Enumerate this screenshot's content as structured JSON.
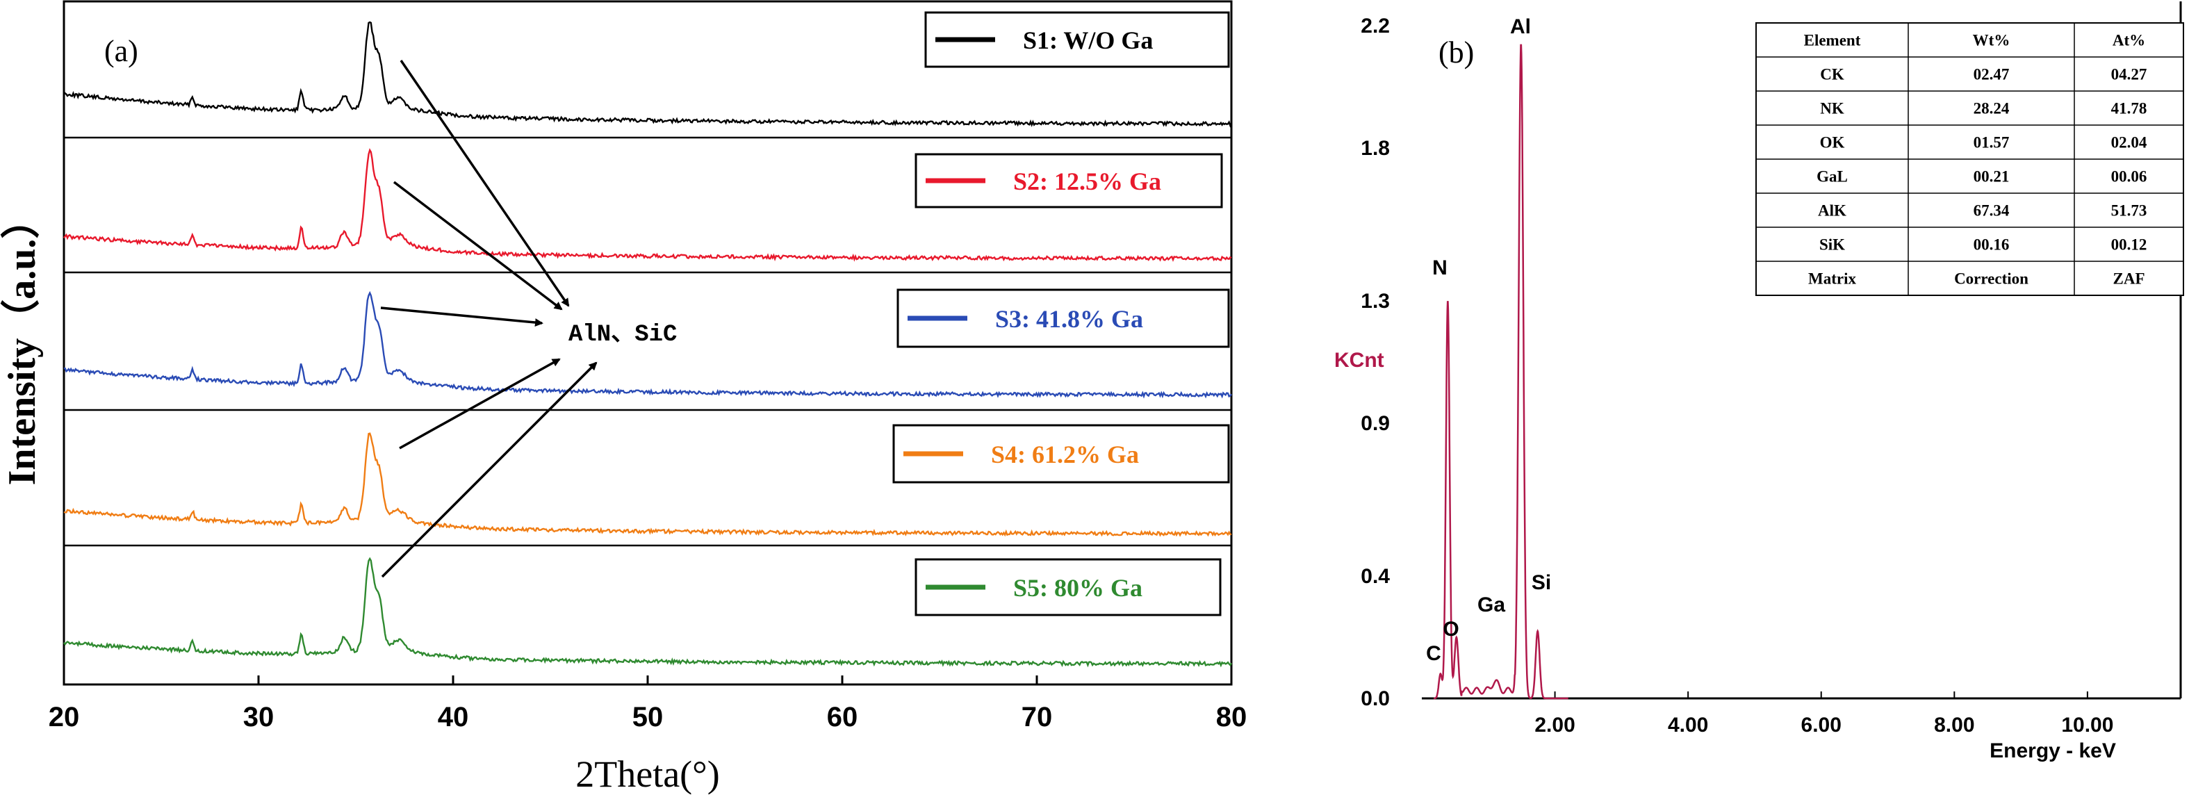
{
  "chart_data": [
    {
      "type": "line",
      "panel_label": "(a)",
      "xlabel": "2Theta(°)",
      "ylabel": "Intensity（a.u.）",
      "xlim": [
        20,
        80
      ],
      "x_ticks": [
        "20",
        "30",
        "40",
        "50",
        "60",
        "70",
        "80"
      ],
      "annotation": "AlN、SiC",
      "peaks_2theta": [
        26.6,
        32.2,
        34.4,
        35.7,
        36.2,
        37.2
      ],
      "series": [
        {
          "name": "S1: W/O Ga",
          "color": "#000000"
        },
        {
          "name": "S2: 12.5%  Ga",
          "color": "#e8192c"
        },
        {
          "name": "S3: 41.8%  Ga",
          "color": "#2a4bb5"
        },
        {
          "name": "S4: 61.2%  Ga",
          "color": "#f07d14"
        },
        {
          "name": "S5: 80%  Ga",
          "color": "#2f8a30"
        }
      ]
    },
    {
      "type": "line",
      "panel_label": "(b)",
      "xlabel": "Energy - keV",
      "ylabel": "KCnt",
      "xlim": [
        0,
        11.4
      ],
      "ylim": [
        0,
        2.2
      ],
      "x_ticks": [
        "2.00",
        "4.00",
        "6.00",
        "8.00",
        "10.00"
      ],
      "y_ticks": [
        "0.0",
        "0.4",
        "0.9",
        "1.3",
        "1.8",
        "2.2"
      ],
      "line_color": "#b0184a",
      "peaks": [
        {
          "label": "C",
          "energy": 0.28,
          "kcnt": 0.08
        },
        {
          "label": "N",
          "energy": 0.39,
          "kcnt": 1.3
        },
        {
          "label": "O",
          "energy": 0.52,
          "kcnt": 0.2
        },
        {
          "label": "Ga",
          "energy": 1.1,
          "kcnt": 0.03
        },
        {
          "label": "Al",
          "energy": 1.49,
          "kcnt": 2.14
        },
        {
          "label": "Si",
          "energy": 1.74,
          "kcnt": 0.22
        }
      ],
      "table": {
        "headers": [
          "Element",
          "Wt%",
          "At%"
        ],
        "rows": [
          [
            "CK",
            "02.47",
            "04.27"
          ],
          [
            "NK",
            "28.24",
            "41.78"
          ],
          [
            "OK",
            "01.57",
            "02.04"
          ],
          [
            "GaL",
            "00.21",
            "00.06"
          ],
          [
            "AlK",
            "67.34",
            "51.73"
          ],
          [
            "SiK",
            "00.16",
            "00.12"
          ],
          [
            "Matrix",
            "Correction",
            "ZAF"
          ]
        ]
      }
    }
  ]
}
